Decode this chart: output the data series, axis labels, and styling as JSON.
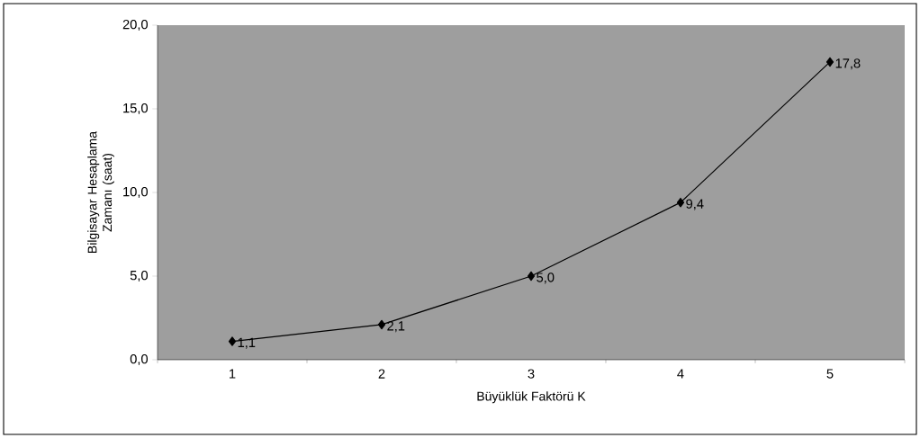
{
  "chart_data": {
    "type": "line",
    "xlabel": "Büyüklük Faktörü K",
    "ylabel": "Bilgisayar Hesaplama Zamanı (saat)",
    "categories": [
      "1",
      "2",
      "3",
      "4",
      "5"
    ],
    "series": [
      {
        "color": "#000000",
        "values": [
          1.1,
          2.1,
          5.0,
          9.4,
          17.8
        ],
        "value_labels": [
          "1,1",
          "2,1",
          "5,0",
          "9,4",
          "17,8"
        ]
      }
    ],
    "ylim": [
      0,
      20
    ],
    "yticks": [
      {
        "value": 0,
        "label": "0,0"
      },
      {
        "value": 5,
        "label": "5,0"
      },
      {
        "value": 10,
        "label": "10,0"
      },
      {
        "value": 15,
        "label": "15,0"
      },
      {
        "value": 20,
        "label": "20,0"
      }
    ],
    "marker": "diamond",
    "line_style": "solid"
  }
}
